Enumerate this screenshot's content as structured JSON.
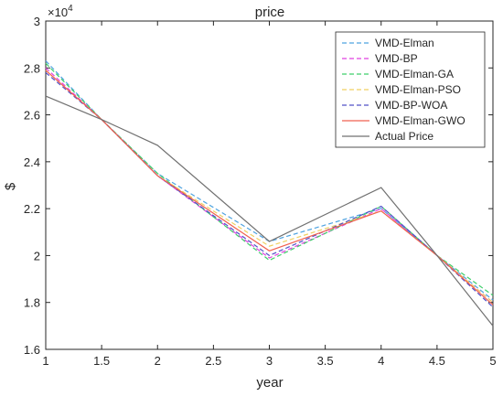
{
  "chart_data": {
    "type": "line",
    "title": "price",
    "xlabel": "year",
    "ylabel": "$",
    "y_exponent_label": "×10",
    "y_exponent_power": "4",
    "xlim": [
      1,
      5
    ],
    "ylim": [
      1.6,
      3.0
    ],
    "x_ticks": [
      "1",
      "1.5",
      "2",
      "2.5",
      "3",
      "3.5",
      "4",
      "4.5",
      "5"
    ],
    "y_ticks": [
      "1.6",
      "1.8",
      "2",
      "2.2",
      "2.4",
      "2.6",
      "2.8",
      "3"
    ],
    "grid": false,
    "legend_position": "top-right",
    "x": [
      1,
      1.5,
      2,
      3,
      4,
      4.5,
      5
    ],
    "series": [
      {
        "name": "VMD-Elman",
        "color": "#4fa3e0",
        "dash": "dashed",
        "values": [
          2.83,
          2.58,
          2.35,
          2.06,
          2.2,
          2.0,
          1.81
        ]
      },
      {
        "name": "VMD-BP",
        "color": "#e040e0",
        "dash": "dashed",
        "values": [
          2.8,
          2.58,
          2.34,
          1.99,
          2.2,
          2.0,
          1.8
        ]
      },
      {
        "name": "VMD-Elman-GA",
        "color": "#3fcf6a",
        "dash": "dashed",
        "values": [
          2.82,
          2.58,
          2.35,
          1.98,
          2.21,
          2.0,
          1.83
        ]
      },
      {
        "name": "VMD-Elman-PSO",
        "color": "#f0d060",
        "dash": "dashed",
        "values": [
          2.79,
          2.58,
          2.34,
          2.04,
          2.19,
          2.0,
          1.8
        ]
      },
      {
        "name": "VMD-BP-WOA",
        "color": "#5050c8",
        "dash": "dashed",
        "values": [
          2.78,
          2.58,
          2.34,
          2.0,
          2.21,
          2.0,
          1.78
        ]
      },
      {
        "name": "VMD-Elman-GWO",
        "color": "#f06050",
        "dash": "solid",
        "values": [
          2.79,
          2.58,
          2.34,
          2.02,
          2.19,
          2.0,
          1.79
        ]
      },
      {
        "name": "Actual Price",
        "color": "#707070",
        "dash": "solid",
        "values": [
          2.68,
          2.58,
          2.47,
          2.06,
          2.29,
          2.0,
          1.7
        ]
      }
    ]
  }
}
